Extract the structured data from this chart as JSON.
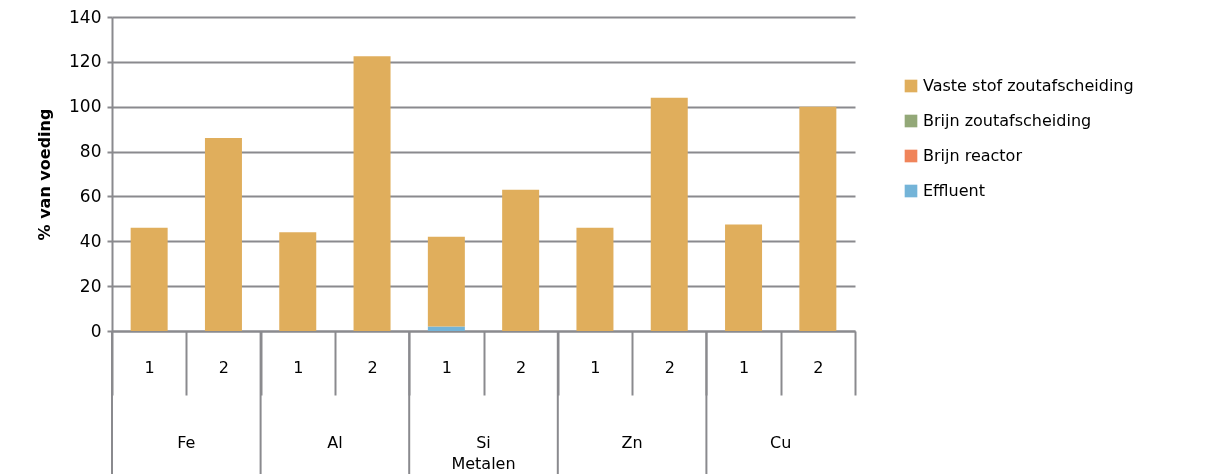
{
  "chart_data": {
    "type": "bar",
    "stacked": true,
    "ylabel": "% van voeding",
    "xlabel": "Metalen",
    "categories": [
      "1",
      "2",
      "1",
      "2",
      "1",
      "2",
      "1",
      "2",
      "1",
      "2"
    ],
    "annotations": [
      "Fe",
      "Al",
      "Si",
      "Zn",
      "Cu"
    ],
    "series": [
      {
        "name": "Effluent",
        "color": "#74b4d8",
        "values": [
          0,
          0,
          0,
          0,
          2,
          0,
          0,
          0,
          0,
          0
        ]
      },
      {
        "name": "Brijn reactor",
        "color": "#f0845a",
        "values": [
          0,
          0,
          0,
          0,
          0,
          0,
          0,
          0,
          0,
          0
        ]
      },
      {
        "name": "Brijn zoutafscheiding",
        "color": "#93a878",
        "values": [
          0,
          0,
          0,
          0,
          0,
          0,
          0,
          0,
          0,
          0
        ]
      },
      {
        "name": "Vaste stof zoutafscheiding",
        "color": "#e0ae5c",
        "values": [
          46,
          86,
          44,
          122.5,
          40,
          63,
          46,
          104,
          47.5,
          100
        ]
      }
    ],
    "ylim": [
      0,
      140
    ],
    "yticks": [
      0,
      20,
      40,
      60,
      80,
      100,
      120,
      140
    ],
    "grid": "y",
    "legend": "right"
  }
}
